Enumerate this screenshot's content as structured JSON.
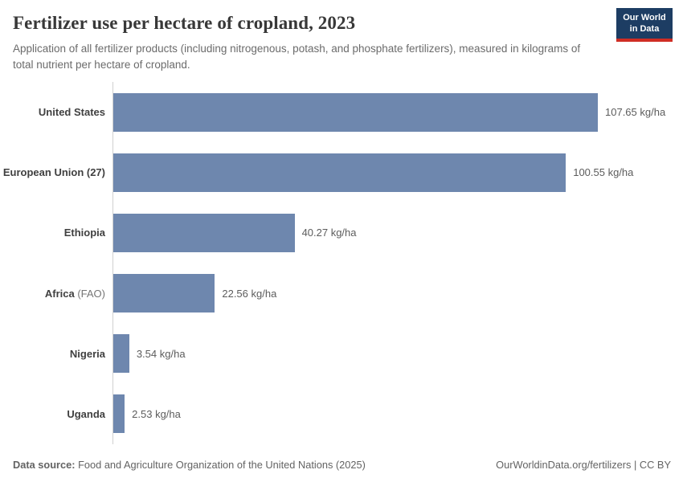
{
  "header": {
    "title": "Fertilizer use per hectare of cropland, 2023",
    "subtitle": "Application of all fertilizer products (including nitrogenous, potash, and phosphate fertilizers), measured in kilograms of total nutrient per hectare of cropland.",
    "logo": {
      "line1": "Our World",
      "line2": "in Data"
    }
  },
  "chart_data": {
    "type": "bar",
    "orientation": "horizontal",
    "title": "Fertilizer use per hectare of cropland, 2023",
    "categories": [
      "United States",
      "European Union (27)",
      "Ethiopia",
      "Africa (FAO)",
      "Nigeria",
      "Uganda"
    ],
    "values": [
      107.65,
      100.55,
      40.27,
      22.56,
      3.54,
      2.53
    ],
    "value_labels": [
      "107.65 kg/ha",
      "100.55 kg/ha",
      "40.27 kg/ha",
      "22.56 kg/ha",
      "3.54 kg/ha",
      "2.53 kg/ha"
    ],
    "unit": "kg/ha",
    "xlim": [
      0,
      110
    ],
    "grid": false,
    "legend": "none",
    "labels": [
      {
        "name": "United States",
        "note": ""
      },
      {
        "name": "European Union (27)",
        "note": ""
      },
      {
        "name": "Ethiopia",
        "note": ""
      },
      {
        "name": "Africa",
        "note": "(FAO)"
      },
      {
        "name": "Nigeria",
        "note": ""
      },
      {
        "name": "Uganda",
        "note": ""
      }
    ]
  },
  "footer": {
    "source_label": "Data source:",
    "source_text": "Food and Agriculture Organization of the United Nations (2025)",
    "right_text": "OurWorldinData.org/fertilizers | CC BY"
  },
  "colors": {
    "bar": "#6e87ae",
    "logo_background": "#1d3d63",
    "logo_accent": "#cf2d24",
    "title_text": "#383838",
    "subtitle_text": "#6b6b6b",
    "value_text": "#5c5c5c",
    "axis_line": "#d0d0d0"
  }
}
